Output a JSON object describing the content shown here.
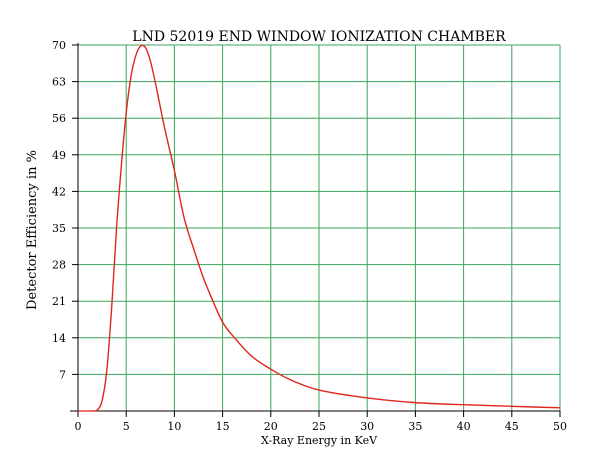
{
  "chart_data": {
    "type": "line",
    "title": "LND 52019 END WINDOW IONIZATION CHAMBER",
    "xlabel": "X-Ray Energy in KeV",
    "ylabel": "Detector Efficiency in %",
    "xlim": [
      0,
      50
    ],
    "ylim": [
      0,
      70
    ],
    "xticks": [
      0,
      5,
      10,
      15,
      20,
      25,
      30,
      35,
      40,
      45,
      50
    ],
    "yticks": [
      7,
      14,
      21,
      28,
      35,
      42,
      49,
      56,
      63,
      70
    ],
    "grid": true,
    "series": [
      {
        "x": [
          1.5,
          2.0,
          2.5,
          3.0,
          3.5,
          4.0,
          4.5,
          5.0,
          5.5,
          6.0,
          6.5,
          7.0,
          7.5,
          8.0,
          9.0,
          10.0,
          11.0,
          12.0,
          13.0,
          14.0,
          15.0,
          16.0,
          18.0,
          20.0,
          22.0,
          25.0,
          30.0,
          35.0,
          40.0,
          45.0,
          50.0
        ],
        "y": [
          0,
          0.2,
          2.0,
          8.0,
          20.0,
          35.0,
          47.0,
          57.0,
          64.0,
          68.0,
          69.8,
          69.5,
          67.0,
          63.0,
          54.0,
          46.0,
          37.0,
          31.0,
          25.5,
          21.0,
          17.0,
          14.5,
          10.5,
          8.0,
          6.0,
          4.0,
          2.5,
          1.6,
          1.2,
          0.9,
          0.6
        ],
        "color": "#e0261c"
      }
    ],
    "colors": {
      "grid": "#3aa65a",
      "axis": "#000000",
      "line": "#e0261c"
    }
  }
}
